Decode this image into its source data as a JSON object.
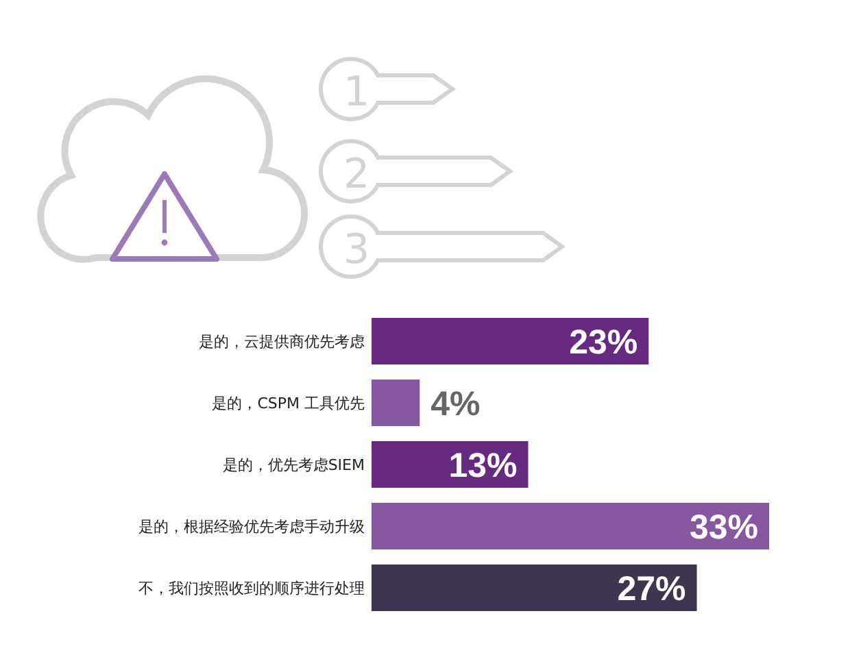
{
  "chart_data": {
    "type": "bar",
    "orientation": "horizontal",
    "data_labels": true,
    "categories": [
      "是的，云提供商优先考虑",
      "是的，CSPM 工具优先",
      "是的，优先考虑SIEM",
      "是的，根据经验优先考虑手动升级",
      "不，我们按照收到的顺序进行处理"
    ],
    "values": [
      23,
      4,
      13,
      33,
      27
    ],
    "value_labels": [
      "23%",
      "4%",
      "13%",
      "33%",
      "27%"
    ],
    "colors": [
      "#662a80",
      "#8757a0",
      "#662a80",
      "#8757a0",
      "#3e3550"
    ],
    "annotations": [
      "1",
      "2",
      "3"
    ]
  }
}
